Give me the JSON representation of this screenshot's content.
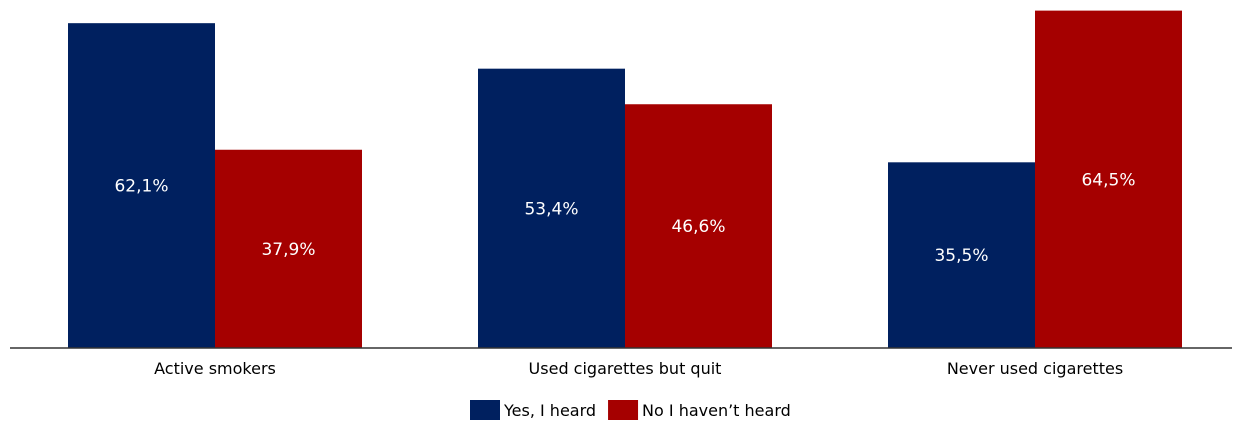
{
  "chart_data": {
    "type": "bar",
    "categories": [
      "Active smokers",
      "Used cigarettes but quit",
      "Never used cigarettes"
    ],
    "series": [
      {
        "name": "Yes, I heard",
        "values": [
          62.1,
          53.4,
          35.5
        ],
        "labels": [
          "62,1%",
          "53,4%",
          "35,5%"
        ],
        "color": "#00205f"
      },
      {
        "name": "No I haven’t heard",
        "values": [
          37.9,
          46.6,
          64.5
        ],
        "labels": [
          "37,9%",
          "46,6%",
          "64,5%"
        ],
        "color": "#a50000"
      }
    ],
    "legend_position": "bottom",
    "grid": false,
    "ylim": [
      0,
      65
    ]
  }
}
